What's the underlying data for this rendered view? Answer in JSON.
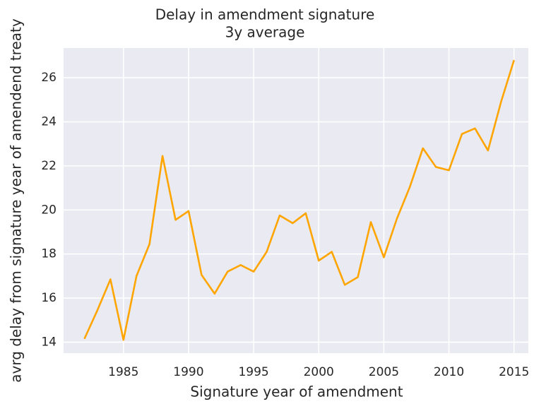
{
  "chart_data": {
    "type": "line",
    "title": "Delay in amendment signature",
    "subtitle": "3y average",
    "xlabel": "Signature year of amendment",
    "ylabel": "avrg delay from signature year of amendend treaty",
    "x": [
      1982,
      1983,
      1984,
      1985,
      1986,
      1987,
      1988,
      1989,
      1990,
      1991,
      1992,
      1993,
      1994,
      1995,
      1996,
      1997,
      1998,
      1999,
      2000,
      2001,
      2002,
      2003,
      2004,
      2005,
      2006,
      2007,
      2008,
      2009,
      2010,
      2011,
      2012,
      2013,
      2014,
      2015
    ],
    "series": [
      {
        "name": "delay",
        "color": "#ffa500",
        "values": [
          14.15,
          15.45,
          16.85,
          14.1,
          17.0,
          18.45,
          22.45,
          19.55,
          19.95,
          17.05,
          16.2,
          17.2,
          17.5,
          17.2,
          18.1,
          19.75,
          19.4,
          19.85,
          17.7,
          18.1,
          16.6,
          16.95,
          19.45,
          17.85,
          19.6,
          21.05,
          22.8,
          21.95,
          21.8,
          23.45,
          23.7,
          22.7,
          24.9,
          26.8
        ]
      }
    ],
    "xlim": [
      1980.4,
      2016.1
    ],
    "ylim": [
      13.5,
      27.35
    ],
    "xticks": [
      1985,
      1990,
      1995,
      2000,
      2005,
      2010,
      2015
    ],
    "yticks": [
      14,
      16,
      18,
      20,
      22,
      24,
      26
    ],
    "grid": true,
    "legend": false
  }
}
